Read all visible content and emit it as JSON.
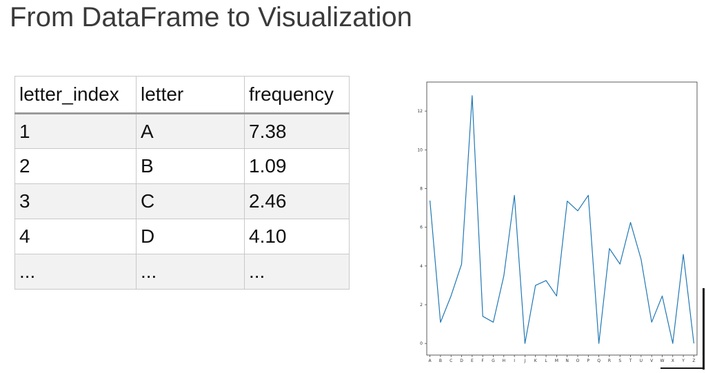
{
  "title": "From DataFrame to Visualization",
  "table": {
    "columns": [
      "letter_index",
      "letter",
      "frequency"
    ],
    "rows": [
      [
        "1",
        "A",
        "7.38"
      ],
      [
        "2",
        "B",
        "1.09"
      ],
      [
        "3",
        "C",
        "2.46"
      ],
      [
        "4",
        "D",
        "4.10"
      ],
      [
        "...",
        "...",
        "..."
      ]
    ]
  },
  "chart_data": {
    "type": "line",
    "x": [
      "A",
      "B",
      "C",
      "D",
      "E",
      "F",
      "G",
      "H",
      "I",
      "J",
      "K",
      "L",
      "M",
      "N",
      "O",
      "P",
      "Q",
      "R",
      "S",
      "T",
      "U",
      "V",
      "W",
      "X",
      "Y",
      "Z"
    ],
    "series": [
      {
        "values": [
          7.38,
          1.09,
          2.46,
          4.1,
          12.8,
          1.4,
          1.1,
          3.5,
          7.65,
          0.0,
          3.0,
          3.25,
          2.45,
          7.35,
          6.85,
          7.65,
          0.0,
          4.9,
          4.1,
          6.25,
          4.35,
          1.1,
          2.45,
          0.0,
          4.6,
          0.0
        ]
      }
    ],
    "yticks": [
      0,
      2,
      4,
      6,
      8,
      10,
      12
    ],
    "ylim": [
      -0.6,
      13.5
    ],
    "line_color": "#1f77b4"
  }
}
